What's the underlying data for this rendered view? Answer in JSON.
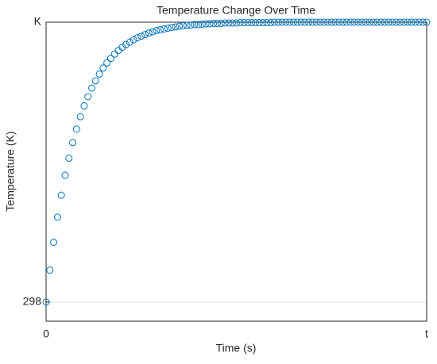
{
  "chart_data": {
    "type": "scatter",
    "title": "Temperature Change Over Time",
    "x_label": "Time (s)",
    "y_label": "Temperature (K)",
    "series": [
      {
        "name": "Temperature",
        "color": "#0072bd",
        "x": [
          0,
          0.1,
          0.2,
          0.3,
          0.4,
          0.5,
          0.6,
          0.7,
          0.8,
          0.9,
          1,
          1.1,
          1.2,
          1.3,
          1.4,
          1.5,
          1.6,
          1.7,
          1.8,
          1.9,
          2,
          2.1,
          2.2,
          2.3,
          2.4,
          2.5,
          2.6,
          2.7,
          2.8,
          2.9,
          3,
          3.1,
          3.2,
          3.3,
          3.4,
          3.5,
          3.6,
          3.7,
          3.8,
          3.9,
          4,
          4.1,
          4.2,
          4.3,
          4.4,
          4.5,
          4.6,
          4.7,
          4.8,
          4.9,
          5,
          5.1,
          5.2,
          5.3,
          5.4,
          5.5,
          5.6,
          5.7,
          5.8,
          5.9,
          6,
          6.1,
          6.2,
          6.3,
          6.4,
          6.5,
          6.6,
          6.7,
          6.8,
          6.9,
          7,
          7.1,
          7.2,
          7.3,
          7.4,
          7.5,
          7.6,
          7.7,
          7.8,
          7.9,
          8,
          8.1,
          8.2,
          8.3,
          8.4,
          8.5,
          8.6,
          8.7,
          8.8,
          8.9,
          9,
          9.1,
          9.2,
          9.3,
          9.4,
          9.5,
          9.6,
          9.7,
          9.8,
          9.9,
          10
        ],
        "values": [
          298,
          378,
          448,
          511,
          566,
          616,
          659,
          698,
          732,
          763,
          790,
          813,
          835,
          853,
          870,
          885,
          898,
          909,
          920,
          929,
          937,
          944,
          950,
          956,
          961,
          965,
          969,
          973,
          976,
          979,
          981,
          983,
          985,
          987,
          988,
          990,
          991,
          992,
          993,
          994,
          994,
          995,
          996,
          996,
          997,
          997,
          997,
          998,
          998,
          998,
          998,
          999,
          999,
          999,
          999,
          999,
          999,
          999,
          999,
          999,
          1000,
          1000,
          1000,
          1000,
          1000,
          1000,
          1000,
          1000,
          1000,
          1000,
          1000,
          1000,
          1000,
          1000,
          1000,
          1000,
          1000,
          1000,
          1000,
          1000,
          1000,
          1000,
          1000,
          1000,
          1000,
          1000,
          1000,
          1000,
          1000,
          1000,
          1000,
          1000,
          1000,
          1000,
          1000,
          1000,
          1000,
          1000,
          1000,
          1000,
          1000
        ]
      }
    ],
    "xlim": [
      0,
      10
    ],
    "xticks": [
      0,
      {
        "value": 10,
        "label": "t"
      }
    ],
    "ylim": [
      250,
      1000
    ],
    "yticks": [
      298,
      {
        "value": 1000,
        "label": "K"
      }
    ],
    "grid": true
  }
}
